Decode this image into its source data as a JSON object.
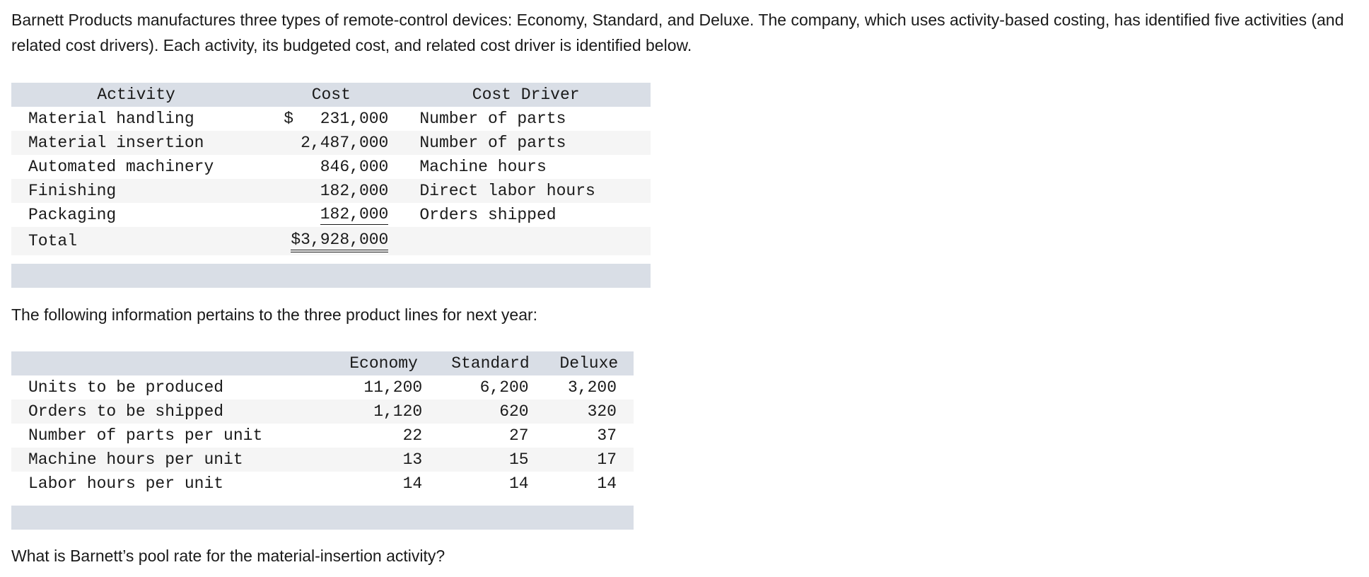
{
  "intro": "Barnett Products manufactures three types of remote-control devices: Economy, Standard, and Deluxe. The company, which uses activity-based costing, has identified five activities (and related cost drivers). Each activity, its budgeted cost, and related cost driver is identified below.",
  "activity_table": {
    "headers": [
      "Activity",
      "Cost",
      "Cost Driver"
    ],
    "currency_symbol": "$",
    "rows": [
      {
        "activity": "Material handling",
        "cost": "231,000",
        "driver": "Number of parts"
      },
      {
        "activity": "Material insertion",
        "cost": "2,487,000",
        "driver": "Number of parts"
      },
      {
        "activity": "Automated machinery",
        "cost": "846,000",
        "driver": "Machine hours"
      },
      {
        "activity": "Finishing",
        "cost": "182,000",
        "driver": "Direct labor hours"
      },
      {
        "activity": "Packaging",
        "cost": "182,000",
        "driver": "Orders shipped"
      }
    ],
    "total_label": "Total",
    "total_value": "$3,928,000"
  },
  "following": "The following information pertains to the three product lines for next year:",
  "product_table": {
    "headers": [
      "",
      "Economy",
      "Standard",
      "Deluxe"
    ],
    "rows": [
      {
        "label": "Units to be produced",
        "economy": "11,200",
        "standard": "6,200",
        "deluxe": "3,200"
      },
      {
        "label": "Orders to be shipped",
        "economy": "1,120",
        "standard": "620",
        "deluxe": "320"
      },
      {
        "label": "Number of parts per unit",
        "economy": "22",
        "standard": "27",
        "deluxe": "37"
      },
      {
        "label": "Machine hours per unit",
        "economy": "13",
        "standard": "15",
        "deluxe": "17"
      },
      {
        "label": "Labor hours per unit",
        "economy": "14",
        "standard": "14",
        "deluxe": "14"
      }
    ]
  },
  "question": "What is Barnett’s pool rate for the material-insertion activity?"
}
